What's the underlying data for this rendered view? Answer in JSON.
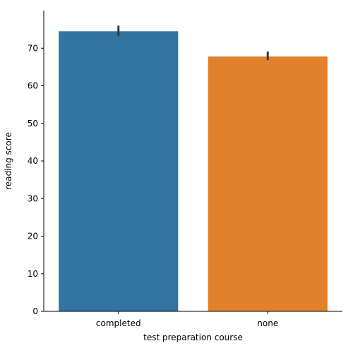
{
  "chart_data": {
    "type": "bar",
    "categories": [
      "completed",
      "none"
    ],
    "values": [
      74.5,
      67.8
    ],
    "error_bars": [
      {
        "low": 73.2,
        "high": 76.0
      },
      {
        "low": 66.8,
        "high": 69.1
      }
    ],
    "colors": [
      "#3274a1",
      "#e1812c"
    ],
    "error_color": "#3a3a3a",
    "xlabel": "test preparation course",
    "ylabel": "reading score",
    "ylim": [
      0,
      80
    ],
    "yticks": [
      0,
      10,
      20,
      30,
      40,
      50,
      60,
      70
    ],
    "grid": false,
    "legend": "none"
  }
}
